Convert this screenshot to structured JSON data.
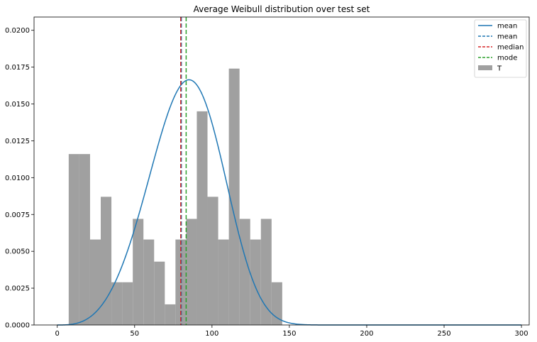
{
  "chart_data": {
    "type": "histogram+line",
    "title": "Average Weibull distribution over test set",
    "xlabel": "",
    "ylabel": "",
    "xlim": [
      -15,
      305
    ],
    "ylim": [
      0,
      0.0209
    ],
    "grid": false,
    "legend_position": "top-right",
    "x_ticks": [
      0,
      50,
      100,
      150,
      200,
      250,
      300
    ],
    "x_tick_labels": [
      "0",
      "50",
      "100",
      "150",
      "200",
      "250",
      "300"
    ],
    "y_ticks": [
      0.0,
      0.0025,
      0.005,
      0.0075,
      0.01,
      0.0125,
      0.015,
      0.0175,
      0.02
    ],
    "y_tick_labels": [
      "0.0000",
      "0.0025",
      "0.0050",
      "0.0075",
      "0.0100",
      "0.0125",
      "0.0150",
      "0.0175",
      "0.0200"
    ],
    "histogram": {
      "name": "T",
      "color": "#a0a0a0",
      "bin_edges": [
        7.4,
        14.3,
        21.2,
        28.1,
        35.0,
        41.9,
        48.8,
        55.7,
        62.6,
        69.5,
        76.4,
        83.3,
        90.2,
        97.1,
        104.0,
        110.9,
        117.8,
        124.7,
        131.6,
        138.5,
        145.4
      ],
      "values": [
        0.0116,
        0.0116,
        0.0058,
        0.0087,
        0.0029,
        0.0029,
        0.0072,
        0.0058,
        0.0043,
        0.0014,
        0.0058,
        0.0072,
        0.0145,
        0.0087,
        0.0058,
        0.0174,
        0.0072,
        0.0058,
        0.0072,
        0.0029
      ]
    },
    "density_curve": {
      "name": "mean",
      "color": "#1f77b4",
      "weibull_scale": 91.5,
      "weibull_shape": 4.0,
      "x_range": [
        0,
        300
      ]
    },
    "vlines": [
      {
        "name": "mean",
        "x": 80.2,
        "color": "#1f77b4"
      },
      {
        "name": "median",
        "x": 79.8,
        "color": "#d62728"
      },
      {
        "name": "mode",
        "x": 83.3,
        "color": "#2ca02c"
      }
    ],
    "legend": [
      {
        "label": "mean",
        "style": "solid",
        "color": "#1f77b4"
      },
      {
        "label": "mean",
        "style": "dashed",
        "color": "#1f77b4"
      },
      {
        "label": "median",
        "style": "dashed",
        "color": "#d62728"
      },
      {
        "label": "mode",
        "style": "dashed",
        "color": "#2ca02c"
      },
      {
        "label": "T",
        "style": "patch",
        "color": "#a0a0a0"
      }
    ]
  }
}
